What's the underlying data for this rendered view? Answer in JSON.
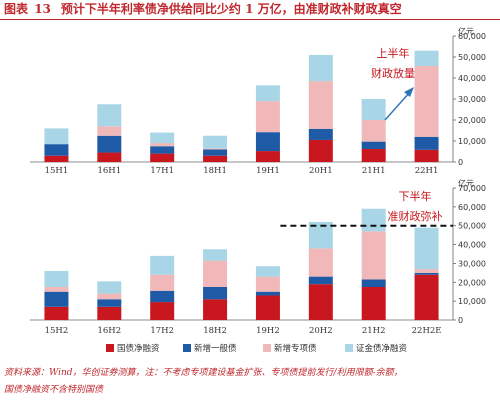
{
  "title": {
    "label": "图表",
    "number": "13",
    "text": "预计下半年利率债净供给同比少约 1 万亿，由准财政补财政真空"
  },
  "colors": {
    "treasury": "#c8171e",
    "general": "#1f5aa6",
    "special": "#f0b8b8",
    "policy": "#a9d6e6",
    "annotation": "#c8171e",
    "arrow": "#2e74b5"
  },
  "chart_data": [
    {
      "type": "bar",
      "stacked": true,
      "categories": [
        "15H1",
        "16H1",
        "17H1",
        "18H1",
        "19H1",
        "20H1",
        "21H1",
        "22H1"
      ],
      "series": [
        {
          "name": "国债净融资",
          "color": "#c8171e",
          "values": [
            3000,
            4500,
            4000,
            3000,
            5200,
            10500,
            6200,
            5800
          ]
        },
        {
          "name": "新增一般债",
          "color": "#1f5aa6",
          "values": [
            5500,
            8000,
            3500,
            3000,
            9000,
            5300,
            3500,
            6200
          ]
        },
        {
          "name": "新增专项债",
          "color": "#f0b8b8",
          "values": [
            0,
            4500,
            1500,
            500,
            14800,
            22700,
            10300,
            33700
          ]
        },
        {
          "name": "证金债净融资",
          "color": "#a9d6e6",
          "values": [
            7500,
            10500,
            5000,
            6000,
            7500,
            12500,
            10000,
            7300
          ]
        }
      ],
      "ylim": [
        0,
        60000
      ],
      "yticks": [
        0,
        10000,
        20000,
        30000,
        40000,
        50000,
        60000
      ],
      "ytick_labels": [
        "0",
        "10,000",
        "20,000",
        "30,000",
        "40,000",
        "50,000",
        "60,000"
      ],
      "yunit": "亿元",
      "annotation": {
        "line1": "上半年",
        "line2": "财政放量"
      },
      "grid": false
    },
    {
      "type": "bar",
      "stacked": true,
      "categories": [
        "15H2",
        "16H2",
        "17H2",
        "18H2",
        "19H2",
        "20H2",
        "21H2",
        "22H2E"
      ],
      "series": [
        {
          "name": "国债净融资",
          "color": "#c8171e",
          "values": [
            7000,
            7000,
            9500,
            11000,
            13000,
            19000,
            17500,
            24000
          ]
        },
        {
          "name": "新增一般债",
          "color": "#1f5aa6",
          "values": [
            8000,
            4000,
            6000,
            6500,
            2000,
            4000,
            4000,
            1000
          ]
        },
        {
          "name": "新增专项债",
          "color": "#f0b8b8",
          "values": [
            2500,
            3000,
            8500,
            14000,
            8000,
            15000,
            25500,
            2000
          ]
        },
        {
          "name": "证金债净融资",
          "color": "#a9d6e6",
          "values": [
            8500,
            6500,
            10000,
            6000,
            5500,
            14000,
            12000,
            22000
          ]
        }
      ],
      "ylim": [
        0,
        70000
      ],
      "yticks": [
        0,
        10000,
        20000,
        30000,
        40000,
        50000,
        60000,
        70000
      ],
      "ytick_labels": [
        "0",
        "10,000",
        "20,000",
        "30,000",
        "40,000",
        "50,000",
        "60,000",
        "70,000"
      ],
      "yunit": "亿元",
      "reference_line": 50000,
      "annotation": {
        "line1": "下半年",
        "line2": "准财政弥补"
      },
      "grid": false
    }
  ],
  "legend": [
    {
      "label": "国债净融资",
      "color": "#c8171e"
    },
    {
      "label": "新增一般债",
      "color": "#1f5aa6"
    },
    {
      "label": "新增专项债",
      "color": "#f0b8b8"
    },
    {
      "label": "证金债净融资",
      "color": "#a9d6e6"
    }
  ],
  "source": {
    "line1": "资料来源：Wind，华创证券测算，注：不考虑专项建设基金扩张、专项债提前发行/利用限额-余额，",
    "line2": "国债净融资不含特别国债"
  }
}
